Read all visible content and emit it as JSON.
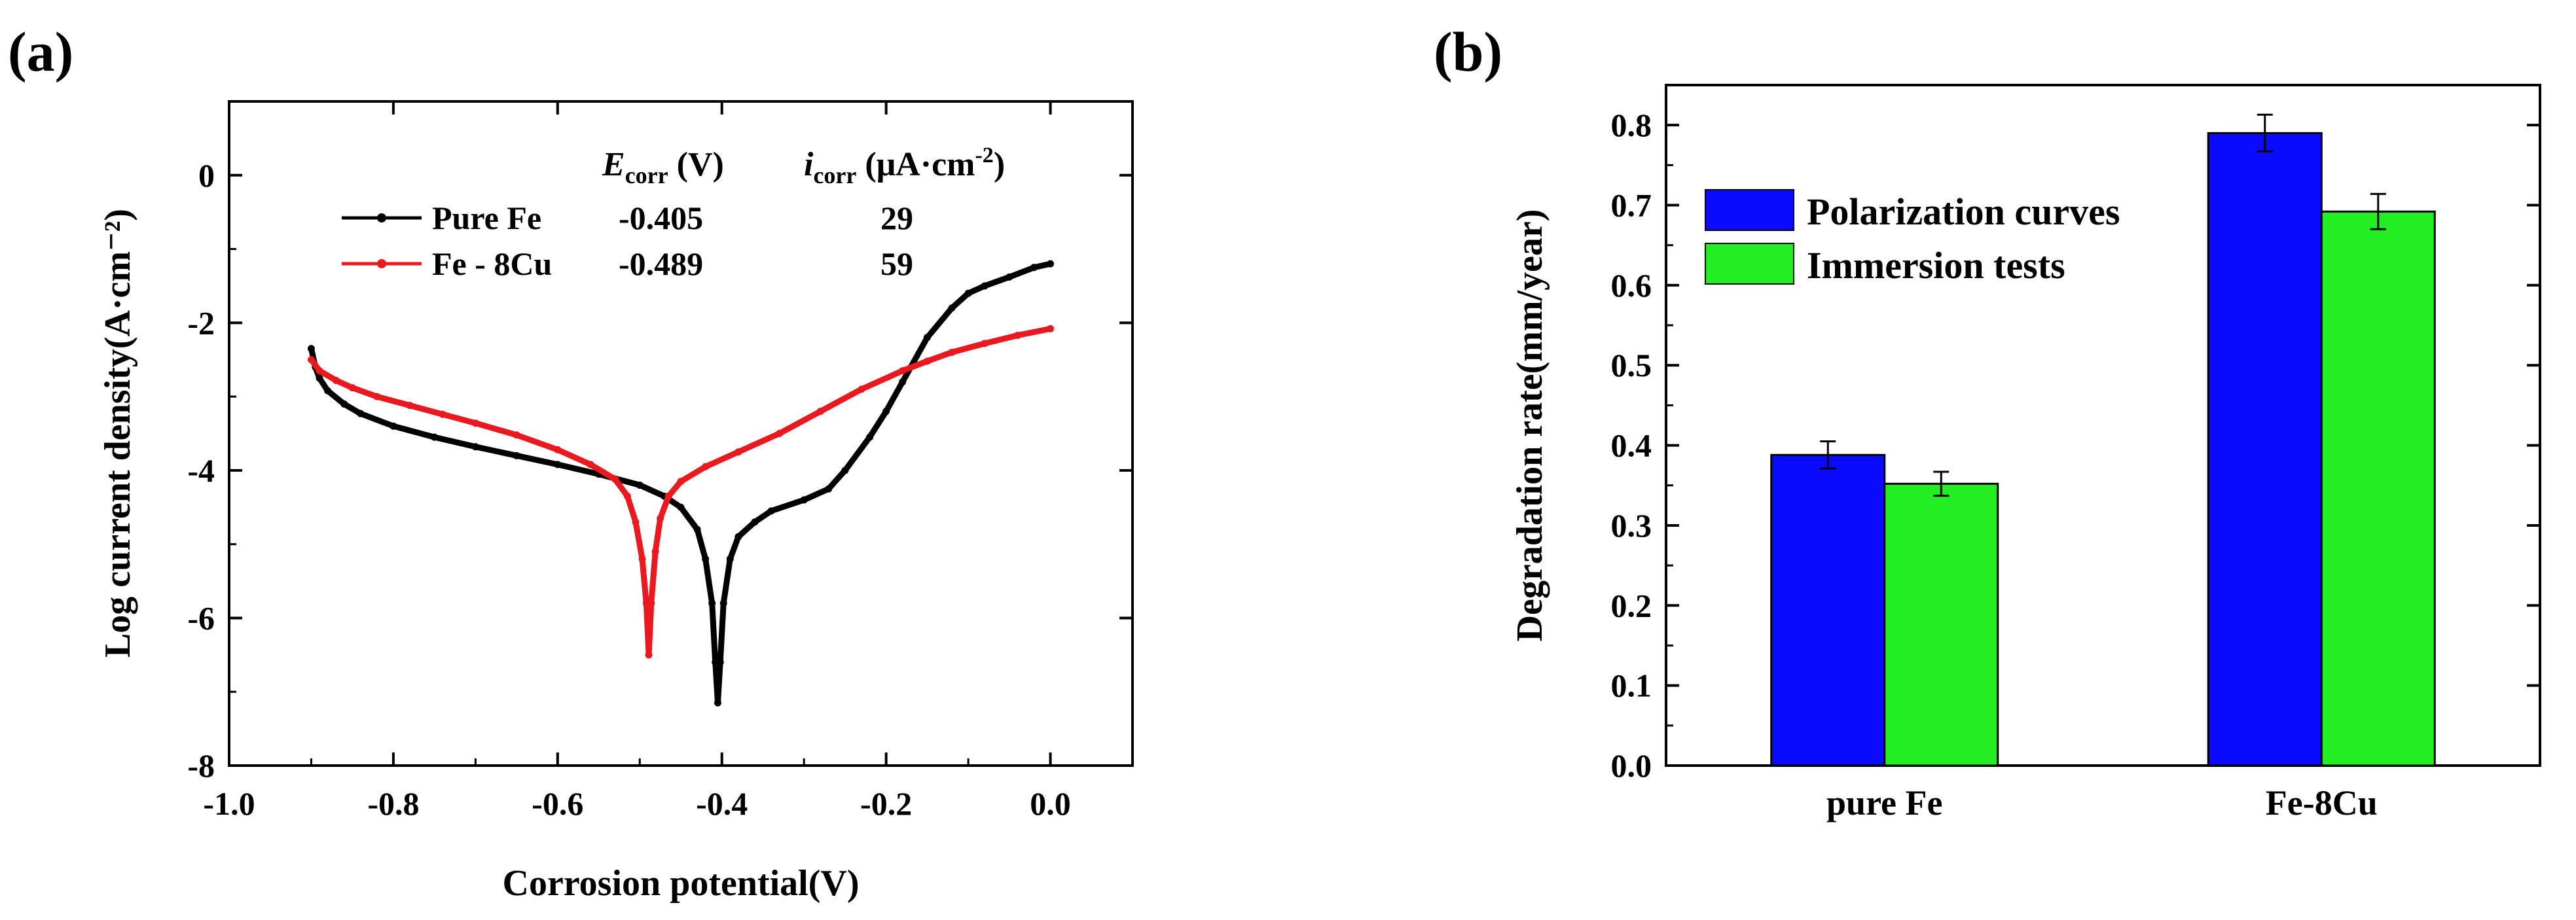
{
  "panel_a_label": "(a)",
  "panel_b_label": "(b)",
  "chart_data": [
    {
      "type": "line",
      "panel": "(a)",
      "title": "",
      "xlabel": "Corrosion potential(V)",
      "ylabel": "Log current density(A·cm⁻²)",
      "xlim": [
        -1.0,
        0.1
      ],
      "ylim": [
        -8,
        1
      ],
      "xticks": [
        -1.0,
        -0.8,
        -0.6,
        -0.4,
        -0.2,
        0.0
      ],
      "xtick_labels": [
        "-1.0",
        "-0.8",
        "-0.6",
        "-0.4",
        "-0.2",
        "0.0"
      ],
      "yticks": [
        -8,
        -6,
        -4,
        -2,
        0
      ],
      "ytick_labels": [
        "-8",
        "-6",
        "-4",
        "-2",
        "0"
      ],
      "grid": false,
      "legend_position": "top-left",
      "table": {
        "header_e": "E",
        "header_e_sub": "corr",
        "header_e_unit": " (V)",
        "header_i": "i",
        "header_i_sub": "corr",
        "header_i_unit": " (μA·cm",
        "header_i_sup": "-2",
        "header_i_close": ")",
        "rows": [
          {
            "name": "Pure Fe",
            "ecorr": "-0.405",
            "icorr": "29"
          },
          {
            "name": "Fe - 8Cu",
            "ecorr": "-0.489",
            "icorr": "59"
          }
        ]
      },
      "series": [
        {
          "name": "Pure Fe",
          "color": "#000000",
          "x": [
            -0.9,
            -0.895,
            -0.89,
            -0.88,
            -0.86,
            -0.84,
            -0.8,
            -0.75,
            -0.7,
            -0.65,
            -0.6,
            -0.55,
            -0.5,
            -0.47,
            -0.45,
            -0.43,
            -0.42,
            -0.412,
            -0.408,
            -0.405,
            -0.402,
            -0.398,
            -0.39,
            -0.38,
            -0.36,
            -0.34,
            -0.3,
            -0.27,
            -0.25,
            -0.22,
            -0.2,
            -0.18,
            -0.15,
            -0.12,
            -0.1,
            -0.08,
            -0.05,
            -0.02,
            0.0
          ],
          "y": [
            -2.35,
            -2.6,
            -2.75,
            -2.92,
            -3.1,
            -3.23,
            -3.4,
            -3.55,
            -3.68,
            -3.8,
            -3.92,
            -4.05,
            -4.2,
            -4.35,
            -4.5,
            -4.8,
            -5.2,
            -5.8,
            -6.6,
            -7.15,
            -6.6,
            -5.8,
            -5.2,
            -4.9,
            -4.7,
            -4.55,
            -4.4,
            -4.25,
            -4.0,
            -3.55,
            -3.2,
            -2.8,
            -2.2,
            -1.8,
            -1.6,
            -1.5,
            -1.38,
            -1.25,
            -1.2
          ]
        },
        {
          "name": "Fe - 8Cu",
          "color": "#e8191f",
          "x": [
            -0.9,
            -0.89,
            -0.87,
            -0.85,
            -0.82,
            -0.78,
            -0.74,
            -0.7,
            -0.65,
            -0.6,
            -0.56,
            -0.53,
            -0.515,
            -0.505,
            -0.497,
            -0.492,
            -0.489,
            -0.486,
            -0.481,
            -0.475,
            -0.465,
            -0.45,
            -0.42,
            -0.38,
            -0.33,
            -0.28,
            -0.23,
            -0.18,
            -0.15,
            -0.12,
            -0.08,
            -0.04,
            0.0
          ],
          "y": [
            -2.5,
            -2.65,
            -2.78,
            -2.88,
            -3.0,
            -3.12,
            -3.24,
            -3.36,
            -3.52,
            -3.72,
            -3.92,
            -4.12,
            -4.35,
            -4.7,
            -5.2,
            -5.8,
            -6.5,
            -5.8,
            -5.1,
            -4.65,
            -4.35,
            -4.15,
            -3.95,
            -3.75,
            -3.5,
            -3.2,
            -2.9,
            -2.65,
            -2.52,
            -2.4,
            -2.28,
            -2.17,
            -2.08
          ]
        }
      ]
    },
    {
      "type": "bar",
      "panel": "(b)",
      "title": "",
      "xlabel": "",
      "ylabel": "Degradation rate(mm/year)",
      "ylim": [
        0.0,
        0.85
      ],
      "yticks": [
        0.0,
        0.1,
        0.2,
        0.3,
        0.4,
        0.5,
        0.6,
        0.7,
        0.8
      ],
      "ytick_labels": [
        "0.0",
        "0.1",
        "0.2",
        "0.3",
        "0.4",
        "0.5",
        "0.6",
        "0.7",
        "0.8"
      ],
      "categories": [
        "pure Fe",
        "Fe-8Cu"
      ],
      "grid": false,
      "legend_position": "top-left",
      "series": [
        {
          "name": "Polarization curves",
          "color": "#0a0aff",
          "values": [
            0.388,
            0.79
          ],
          "errors": [
            0.017,
            0.023
          ]
        },
        {
          "name": "Immersion tests",
          "color": "#22ee22",
          "values": [
            0.352,
            0.692
          ],
          "errors": [
            0.015,
            0.022
          ]
        }
      ]
    }
  ]
}
